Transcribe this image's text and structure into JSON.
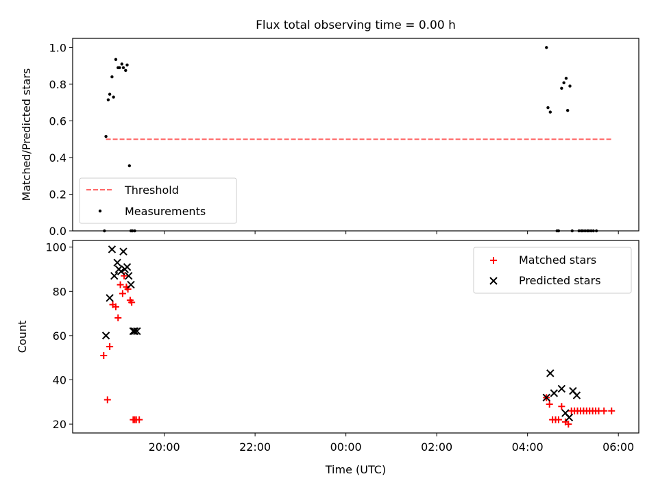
{
  "figure_title": "Flux total observing time = 0.00 h",
  "chart_data": [
    {
      "type": "scatter",
      "ylabel": "Matched/Predicted stars",
      "ylim": [
        0,
        1.05
      ],
      "yticks": [
        0.0,
        0.2,
        0.4,
        0.6,
        0.8,
        1.0
      ],
      "ytick_labels": [
        "0.0",
        "0.2",
        "0.4",
        "0.6",
        "0.8",
        "1.0"
      ],
      "grid": false,
      "legend": {
        "position": "lower-left",
        "entries": [
          "Threshold",
          "Measurements"
        ]
      },
      "threshold": {
        "name": "Threshold",
        "x": [
          "18:43",
          "05:51"
        ],
        "y": 0.5,
        "color": "#ff6666",
        "style": "dashed"
      },
      "series": [
        {
          "name": "Measurements",
          "marker": "dot",
          "color": "#000000",
          "x": [
            "18:41",
            "18:43",
            "18:46",
            "18:48",
            "18:51",
            "18:53",
            "18:56",
            "18:59",
            "19:01",
            "19:04",
            "19:06",
            "19:09",
            "19:11",
            "19:14",
            "19:16",
            "19:18",
            "19:21",
            "04:25",
            "04:27",
            "04:30",
            "04:39",
            "04:41",
            "04:45",
            "04:48",
            "04:51",
            "04:53",
            "04:56",
            "04:59",
            "05:08",
            "05:11",
            "05:13",
            "05:16",
            "05:19",
            "05:21",
            "05:24",
            "05:27",
            "05:31"
          ],
          "y": [
            0.0,
            0.515,
            0.715,
            0.745,
            0.84,
            0.73,
            0.935,
            0.89,
            0.89,
            0.91,
            0.89,
            0.875,
            0.905,
            0.355,
            0.0,
            0.0,
            0.0,
            1.0,
            0.672,
            0.648,
            0.0,
            0.0,
            0.778,
            0.808,
            0.832,
            0.657,
            0.79,
            0.0,
            0.0,
            0.0,
            0.0,
            0.0,
            0.0,
            0.0,
            0.0,
            0.0,
            0.0
          ]
        }
      ]
    },
    {
      "type": "scatter",
      "ylabel": "Count",
      "xlabel": "Time (UTC)",
      "ylim": [
        16,
        103
      ],
      "yticks": [
        20,
        40,
        60,
        80,
        100
      ],
      "ytick_labels": [
        "20",
        "40",
        "60",
        "80",
        "100"
      ],
      "x_range": [
        "17:59",
        "06:27"
      ],
      "xticks": [
        "20:00",
        "22:00",
        "00:00",
        "02:00",
        "04:00",
        "06:00"
      ],
      "grid": false,
      "legend": {
        "position": "top-right",
        "entries": [
          "Matched stars",
          "Predicted stars"
        ]
      },
      "series": [
        {
          "name": "Matched stars",
          "marker": "plus",
          "color": "#ff0000",
          "x": [
            "18:40",
            "18:45",
            "18:48",
            "18:52",
            "18:56",
            "18:59",
            "19:02",
            "19:05",
            "19:07",
            "19:10",
            "19:12",
            "19:15",
            "19:17",
            "19:19",
            "19:21",
            "19:23",
            "19:27",
            "04:25",
            "04:29",
            "04:33",
            "04:37",
            "04:41",
            "04:45",
            "04:50",
            "04:54",
            "04:58",
            "05:02",
            "05:06",
            "05:10",
            "05:14",
            "05:18",
            "05:22",
            "05:26",
            "05:30",
            "05:34",
            "05:41",
            "05:51"
          ],
          "y": [
            51,
            31,
            55,
            74,
            73,
            68,
            83,
            79,
            87,
            82,
            81,
            76,
            75,
            22,
            22,
            22,
            22,
            32,
            29,
            22,
            22,
            22,
            28,
            21,
            20,
            26,
            26,
            26,
            26,
            26,
            26,
            26,
            26,
            26,
            26,
            26,
            26
          ]
        },
        {
          "name": "Predicted stars",
          "marker": "x",
          "color": "#000000",
          "x": [
            "18:43",
            "18:48",
            "18:51",
            "18:54",
            "18:58",
            "19:00",
            "19:03",
            "19:06",
            "19:08",
            "19:11",
            "19:13",
            "19:16",
            "19:19",
            "19:21",
            "19:24",
            "04:25",
            "04:30",
            "04:35",
            "04:45",
            "04:50",
            "04:55",
            "05:00",
            "05:05"
          ],
          "y": [
            60,
            77,
            99,
            87,
            93,
            90,
            89,
            98,
            90,
            91,
            87,
            83,
            62,
            62,
            62,
            32,
            43,
            34,
            36,
            25,
            23,
            35,
            33
          ]
        }
      ]
    }
  ]
}
